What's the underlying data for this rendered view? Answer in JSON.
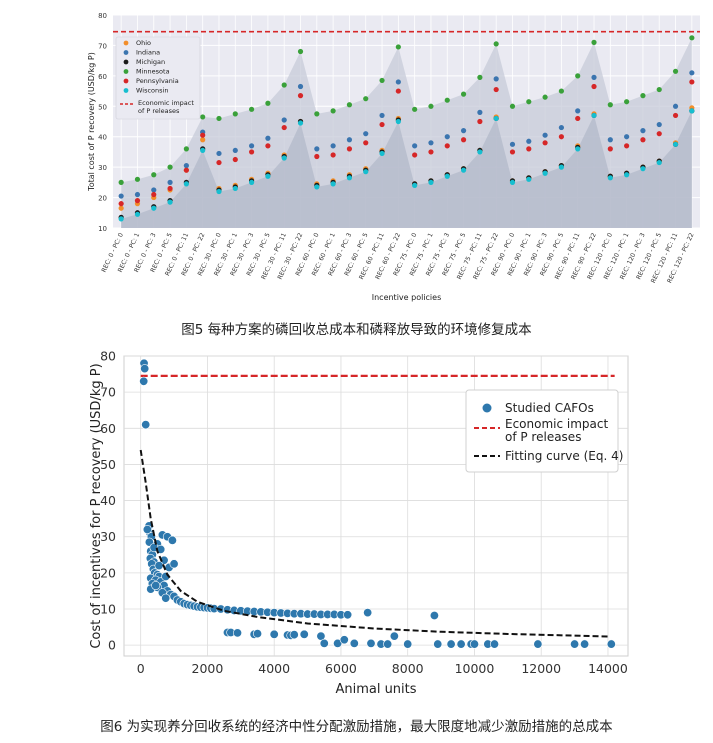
{
  "captions": {
    "fig5": "图5 每种方案的磷回收总成本和磷释放导致的环境修复成本",
    "fig6": "图6 为实现养分回收系统的经济中性分配激励措施，最大限度地减少激励措施的总成本"
  },
  "chart_data": [
    {
      "type": "scatter",
      "title": "",
      "xlabel": "Incentive policies",
      "ylabel": "Total cost of P recovery (USD/kg P)",
      "ylim": [
        10,
        80
      ],
      "yticks": [
        10,
        20,
        30,
        40,
        50,
        60,
        70,
        80
      ],
      "grid": true,
      "legend_position": "top-left",
      "categories": [
        "REC: 0 - PC: 0",
        "REC: 0 - PC: 1",
        "REC: 0 - PC: 3",
        "REC: 0 - PC: 5",
        "REC: 0 - PC: 11",
        "REC: 0 - PC: 22",
        "REC: 30 - PC: 0",
        "REC: 30 - PC: 1",
        "REC: 30 - PC: 3",
        "REC: 30 - PC: 5",
        "REC: 30 - PC: 11",
        "REC: 30 - PC: 22",
        "REC: 60 - PC: 0",
        "REC: 60 - PC: 1",
        "REC: 60 - PC: 3",
        "REC: 60 - PC: 5",
        "REC: 60 - PC: 11",
        "REC: 60 - PC: 22",
        "REC: 75 - PC: 0",
        "REC: 75 - PC: 1",
        "REC: 75 - PC: 3",
        "REC: 75 - PC: 5",
        "REC: 75 - PC: 11",
        "REC: 75 - PC: 22",
        "REC: 90 - PC: 0",
        "REC: 90 - PC: 1",
        "REC: 90 - PC: 3",
        "REC: 90 - PC: 5",
        "REC: 90 - PC: 11",
        "REC: 90 - PC: 22",
        "REC: 120 - PC: 0",
        "REC: 120 - PC: 1",
        "REC: 120 - PC: 3",
        "REC: 120 - PC: 5",
        "REC: 120 - PC: 11",
        "REC: 120 - PC: 22"
      ],
      "series": [
        {
          "name": "Ohio",
          "color": "#f28e2b",
          "values": [
            16.5,
            18,
            20,
            22.5,
            29,
            39,
            23,
            24,
            26,
            28,
            34,
            45,
            24.5,
            25.5,
            27.5,
            29.5,
            35.5,
            46,
            24.5,
            25.5,
            27.5,
            29.5,
            35.5,
            46.5,
            25.5,
            26.5,
            28.5,
            30.5,
            37,
            47.5,
            27,
            28,
            30,
            32,
            38,
            49.5
          ]
        },
        {
          "name": "Indiana",
          "color": "#3b75af",
          "values": [
            20.5,
            21,
            22.5,
            25,
            30.5,
            41.5,
            34.5,
            35.5,
            37,
            39.5,
            45.5,
            56.5,
            36,
            37,
            39,
            41,
            47,
            58,
            37,
            38,
            40,
            42,
            48,
            59,
            37.5,
            38.5,
            40.5,
            43,
            48.5,
            59.5,
            39,
            40,
            42,
            44,
            50,
            61
          ]
        },
        {
          "name": "Michigan",
          "color": "#1a1a1a",
          "values": [
            13.5,
            15,
            17,
            19,
            25,
            36,
            22.5,
            23.5,
            25.5,
            27.5,
            33.5,
            45,
            24,
            25,
            27,
            29,
            35,
            45.5,
            24.5,
            25.5,
            27.5,
            29.5,
            35.5,
            46,
            25.5,
            26.5,
            28.5,
            30.5,
            36.5,
            47,
            27,
            28,
            30,
            32,
            37.5,
            48.5
          ]
        },
        {
          "name": "Minnesota",
          "color": "#3aa13a",
          "values": [
            25,
            26,
            27.5,
            30,
            36,
            46.5,
            46,
            47.5,
            49,
            51,
            57,
            68,
            47.5,
            48.5,
            50.5,
            52.5,
            58.5,
            69.5,
            49,
            50,
            52,
            54,
            59.5,
            70.5,
            50,
            51.5,
            53,
            55,
            60,
            71,
            50.5,
            51.5,
            53.5,
            55.5,
            61.5,
            72.5
          ]
        },
        {
          "name": "Pennsylvania",
          "color": "#d62728",
          "values": [
            18,
            19,
            21,
            23,
            29,
            40.5,
            31.5,
            32.5,
            35,
            37,
            43,
            53.5,
            33.5,
            34,
            36,
            38,
            44,
            55,
            34,
            35,
            37,
            39,
            45,
            55.5,
            35,
            36,
            38,
            40,
            46,
            56.5,
            36,
            37,
            39,
            41,
            47,
            58
          ]
        },
        {
          "name": "Wisconsin",
          "color": "#17becf",
          "values": [
            13,
            14.5,
            16.5,
            18.5,
            24.5,
            35.5,
            22,
            23,
            25,
            27,
            33,
            44.5,
            23.5,
            24.5,
            26.5,
            28.5,
            34.5,
            45,
            24,
            25,
            27,
            29,
            35,
            46,
            25,
            26,
            28,
            30,
            36,
            47,
            26.5,
            27.5,
            29.5,
            31.5,
            37.5,
            48.5
          ]
        }
      ],
      "reference_line": {
        "name": "Economic impact\nof P releases",
        "value": 74.5,
        "color": "#d62728"
      }
    },
    {
      "type": "scatter",
      "title": "",
      "xlabel": "Animal units",
      "ylabel": "Cost of incentives for P recovery (USD/kg P)",
      "xlim": [
        -500,
        14600
      ],
      "ylim": [
        -3,
        80
      ],
      "xticks": [
        0,
        2000,
        4000,
        6000,
        8000,
        10000,
        12000,
        14000
      ],
      "yticks": [
        0,
        10,
        20,
        30,
        40,
        50,
        60,
        70,
        80
      ],
      "grid": true,
      "legend_position": "upper-right",
      "series": [
        {
          "name": "Studied CAFOs",
          "color": "#2e78ad",
          "points": [
            [
              100,
              78
            ],
            [
              120,
              76.5
            ],
            [
              90,
              73
            ],
            [
              150,
              61
            ],
            [
              250,
              33
            ],
            [
              280,
              31
            ],
            [
              320,
              30
            ],
            [
              260,
              28.5
            ],
            [
              300,
              26
            ],
            [
              350,
              25
            ],
            [
              290,
              24
            ],
            [
              400,
              23
            ],
            [
              330,
              22.5
            ],
            [
              380,
              21
            ],
            [
              420,
              20
            ],
            [
              500,
              19.5
            ],
            [
              550,
              19
            ],
            [
              300,
              18.5
            ],
            [
              450,
              18
            ],
            [
              600,
              17.5
            ],
            [
              350,
              17
            ],
            [
              700,
              16.5
            ],
            [
              500,
              16
            ],
            [
              300,
              15.5
            ],
            [
              800,
              15
            ],
            [
              650,
              14.5
            ],
            [
              900,
              14
            ],
            [
              1000,
              13.5
            ],
            [
              750,
              13
            ],
            [
              1100,
              12.5
            ],
            [
              1200,
              12
            ],
            [
              1300,
              11.5
            ],
            [
              1400,
              11.2
            ],
            [
              1500,
              11
            ],
            [
              1600,
              10.8
            ],
            [
              1700,
              10.6
            ],
            [
              1800,
              10.5
            ],
            [
              1900,
              10.4
            ],
            [
              2000,
              10.3
            ],
            [
              2100,
              10.2
            ],
            [
              2200,
              10.1
            ],
            [
              2400,
              10
            ],
            [
              2600,
              9.8
            ],
            [
              2800,
              9.6
            ],
            [
              3000,
              9.5
            ],
            [
              3200,
              9.4
            ],
            [
              3400,
              9.3
            ],
            [
              3600,
              9.2
            ],
            [
              3800,
              9.1
            ],
            [
              4000,
              9
            ],
            [
              4200,
              8.9
            ],
            [
              4400,
              8.8
            ],
            [
              4600,
              8.7
            ],
            [
              4800,
              8.7
            ],
            [
              5000,
              8.6
            ],
            [
              5200,
              8.6
            ],
            [
              5400,
              8.5
            ],
            [
              5600,
              8.5
            ],
            [
              5800,
              8.5
            ],
            [
              6000,
              8.4
            ],
            [
              6200,
              8.4
            ],
            [
              6800,
              9
            ],
            [
              8800,
              8.2
            ],
            [
              650,
              30.5
            ],
            [
              800,
              30
            ],
            [
              950,
              29
            ],
            [
              500,
              28
            ],
            [
              400,
              27
            ],
            [
              600,
              26.5
            ],
            [
              200,
              32
            ],
            [
              700,
              23.5
            ],
            [
              550,
              22
            ],
            [
              850,
              21.5
            ],
            [
              1000,
              22.5
            ],
            [
              450,
              16.5
            ],
            [
              750,
              19
            ],
            [
              2600,
              3.5
            ],
            [
              2700,
              3.5
            ],
            [
              2900,
              3.4
            ],
            [
              3400,
              3
            ],
            [
              3500,
              3.2
            ],
            [
              4000,
              3
            ],
            [
              4400,
              2.8
            ],
            [
              4500,
              2.7
            ],
            [
              4600,
              2.9
            ],
            [
              4900,
              3
            ],
            [
              5400,
              2.5
            ],
            [
              5500,
              0.5
            ],
            [
              5900,
              0.5
            ],
            [
              6100,
              1.5
            ],
            [
              6400,
              0.5
            ],
            [
              6900,
              0.5
            ],
            [
              7200,
              0.3
            ],
            [
              7400,
              0.3
            ],
            [
              7600,
              2.5
            ],
            [
              8000,
              0.3
            ],
            [
              8900,
              0.3
            ],
            [
              9300,
              0.3
            ],
            [
              9600,
              0.3
            ],
            [
              9900,
              0.3
            ],
            [
              10000,
              0.3
            ],
            [
              10400,
              0.3
            ],
            [
              10600,
              0.3
            ],
            [
              11900,
              0.3
            ],
            [
              13000,
              0.3
            ],
            [
              13300,
              0.3
            ],
            [
              14100,
              0.3
            ]
          ]
        }
      ],
      "reference_line": {
        "name": "Economic impact\nof P releases",
        "value": 74.5,
        "color": "#d62728"
      },
      "fit_curve": {
        "name": "Fitting curve (Eq. 4)",
        "color": "#111111",
        "points": [
          [
            0,
            54
          ],
          [
            150,
            45
          ],
          [
            300,
            35
          ],
          [
            500,
            26
          ],
          [
            800,
            19.5
          ],
          [
            1200,
            15
          ],
          [
            1700,
            12
          ],
          [
            2500,
            9.5
          ],
          [
            3500,
            7.8
          ],
          [
            5000,
            6
          ],
          [
            7000,
            4.6
          ],
          [
            9000,
            3.7
          ],
          [
            11000,
            3.1
          ],
          [
            14000,
            2.4
          ]
        ]
      }
    }
  ]
}
